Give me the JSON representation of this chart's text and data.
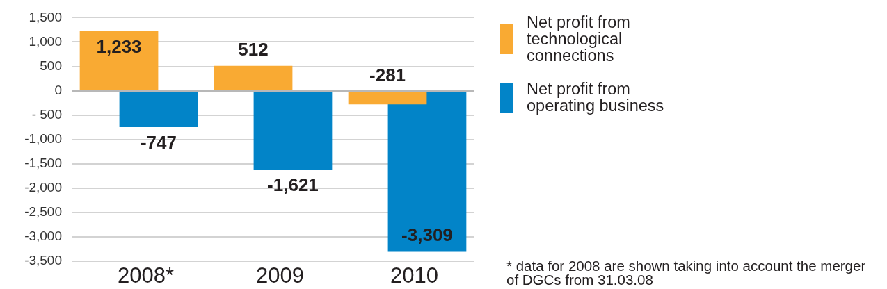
{
  "chart_data": {
    "type": "bar",
    "categories": [
      "2008*",
      "2009",
      "2010"
    ],
    "series": [
      {
        "name": "Net profit from technological connections",
        "color": "#f9aa33",
        "values": [
          1233,
          512,
          -281
        ],
        "value_labels": [
          "1,233",
          "512",
          "-281"
        ]
      },
      {
        "name": "Net profit from operating business",
        "color": "#0284c8",
        "values": [
          -747,
          -1621,
          -3309
        ],
        "value_labels": [
          "-747",
          "-1,621",
          "-3,309"
        ]
      }
    ],
    "ylim": [
      -3500,
      1500
    ],
    "yticks": [
      {
        "value": -3500,
        "label": "-3,500"
      },
      {
        "value": -3000,
        "label": "-3,000"
      },
      {
        "value": -2500,
        "label": "-2,500"
      },
      {
        "value": -2000,
        "label": "-2,000"
      },
      {
        "value": -1500,
        "label": "-1,500"
      },
      {
        "value": -1000,
        "label": "-1,000"
      },
      {
        "value": -500,
        "label": "- 500"
      },
      0,
      500,
      {
        "value": 1000,
        "label": "1,000"
      },
      {
        "value": 1500,
        "label": "1,500"
      }
    ],
    "grid": "y",
    "legend": "right",
    "annotations": [
      "* data for 2008 are shown taking into account the merger of DGCs from 31.03.08"
    ]
  }
}
